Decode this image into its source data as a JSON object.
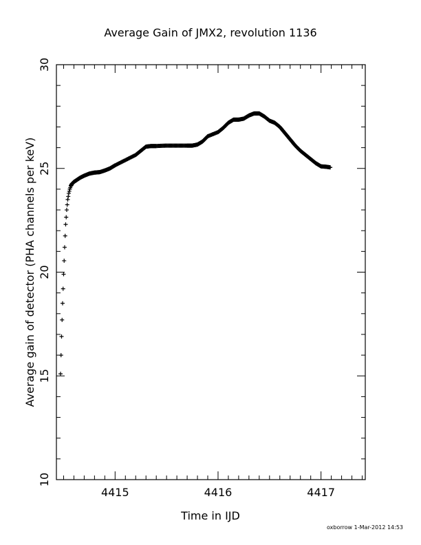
{
  "chart_data": {
    "type": "scatter",
    "title": "Average Gain of JMX2, revolution 1136",
    "xlabel": "Time in IJD",
    "ylabel": "Average gain of detector (PHA channels per keV)",
    "xlim": [
      4414.43,
      4417.43
    ],
    "ylim": [
      10,
      30
    ],
    "xticks": [
      4415,
      4416,
      4417
    ],
    "yticks": [
      10,
      15,
      20,
      25,
      30
    ],
    "grid": false,
    "marker": "+",
    "series": [
      {
        "x": [
          4414.47,
          4414.48,
          4414.49,
          4414.5,
          4414.51,
          4414.52,
          4414.53,
          4414.54,
          4414.55,
          4414.56,
          4414.57,
          4414.58,
          4414.6,
          4414.63,
          4414.66,
          4414.7,
          4414.75,
          4414.8,
          4414.85,
          4414.9,
          4414.95,
          4415.0,
          4415.1,
          4415.2,
          4415.25,
          4415.3,
          4415.35,
          4415.4,
          4415.5,
          4415.6,
          4415.7,
          4415.75,
          4415.8,
          4415.85,
          4415.9,
          4416.0,
          4416.05,
          4416.1,
          4416.15,
          4416.2,
          4416.25,
          4416.3,
          4416.35,
          4416.4,
          4416.45,
          4416.5,
          4416.55,
          4416.6,
          4416.65,
          4416.7,
          4416.75,
          4416.8,
          4416.85,
          4416.9,
          4416.95,
          4417.0,
          4417.05,
          4417.09
        ],
        "y": [
          15.1,
          16.9,
          18.5,
          19.9,
          21.2,
          22.3,
          23.0,
          23.5,
          23.8,
          24.0,
          24.15,
          24.25,
          24.35,
          24.45,
          24.55,
          24.65,
          24.75,
          24.8,
          24.82,
          24.9,
          25.0,
          25.15,
          25.4,
          25.65,
          25.85,
          26.05,
          26.08,
          26.08,
          26.1,
          26.1,
          26.1,
          26.1,
          26.15,
          26.3,
          26.55,
          26.75,
          26.95,
          27.2,
          27.35,
          27.35,
          27.4,
          27.55,
          27.65,
          27.65,
          27.5,
          27.3,
          27.2,
          27.0,
          26.7,
          26.4,
          26.1,
          25.85,
          25.65,
          25.45,
          25.25,
          25.1,
          25.08,
          25.05
        ]
      }
    ]
  },
  "footer": {
    "credit": "oxborrow  1-Mar-2012 14:53"
  }
}
